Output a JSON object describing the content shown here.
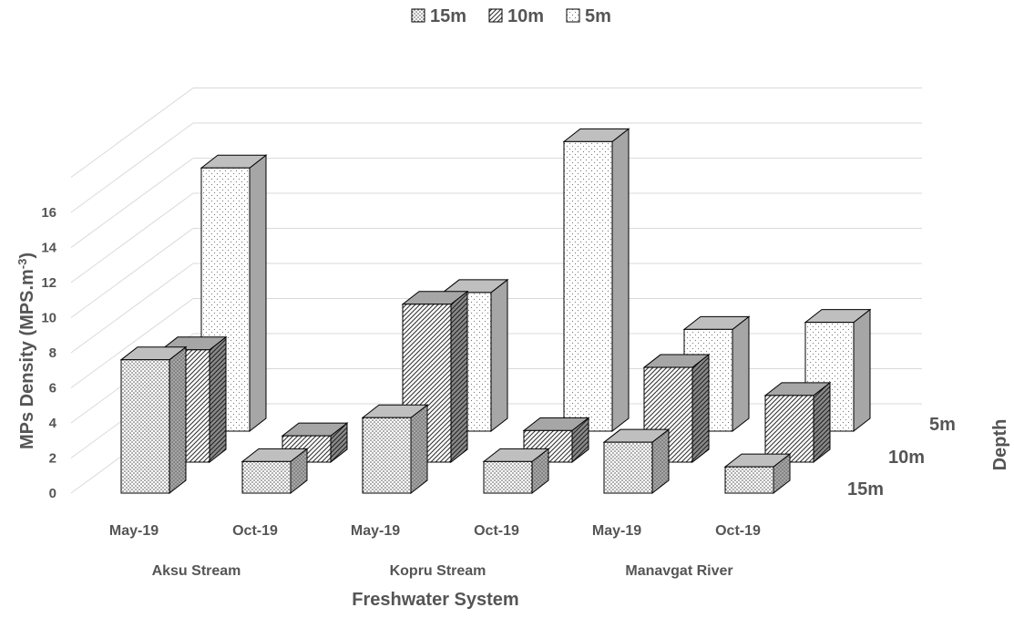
{
  "chart_data": {
    "type": "bar",
    "subtype": "3d-column",
    "title": "",
    "xlabel": "Freshwater System",
    "ylabel": "MPs Density (MPS.m",
    "ylabel_sup": "-3",
    "ylabel_close": ")",
    "zlabel": "Depth",
    "ylim": [
      0,
      16
    ],
    "yticks": [
      "0",
      "2",
      "4",
      "6",
      "8",
      "10",
      "12",
      "14",
      "16"
    ],
    "grid": true,
    "legend_position": "top",
    "groups": [
      "Aksu Stream",
      "Kopru Stream",
      "Manavgat River"
    ],
    "categories": [
      "May-19",
      "Oct-19",
      "May-19",
      "Oct-19",
      "May-19",
      "Oct-19"
    ],
    "series": [
      {
        "name": "15m",
        "values": [
          7.6,
          1.8,
          4.3,
          1.8,
          2.9,
          1.5
        ],
        "pattern": "dense-dots"
      },
      {
        "name": "10m",
        "values": [
          6.4,
          1.5,
          9.0,
          1.8,
          5.4,
          3.8
        ],
        "pattern": "diagonal"
      },
      {
        "name": "5m",
        "values": [
          15.0,
          0,
          7.9,
          16.5,
          5.8,
          6.2
        ],
        "pattern": "sparse-dots"
      }
    ],
    "depth_labels": [
      "15m",
      "10m",
      "5m"
    ]
  },
  "colors": {
    "text": "#555555",
    "grid": "#d9d9d9",
    "outline": "#000000",
    "side": "#a6a6a6",
    "top": "#bfbfbf"
  }
}
